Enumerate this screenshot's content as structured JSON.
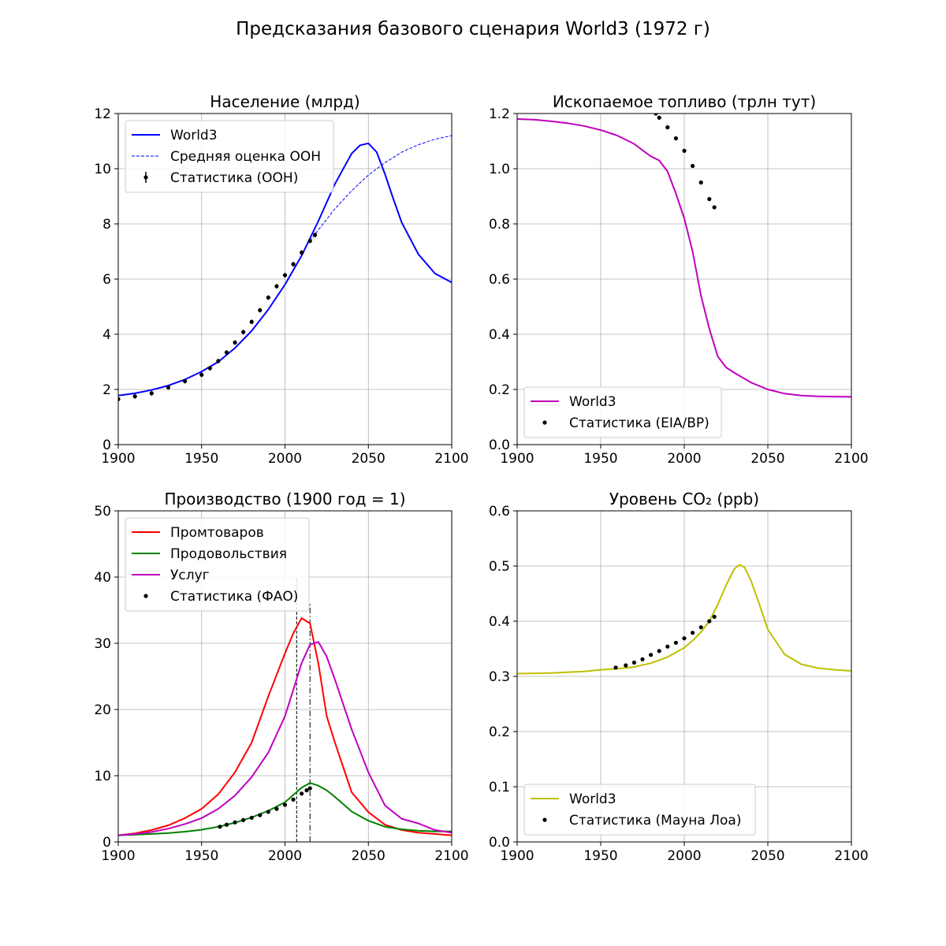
{
  "figure": {
    "title": "Предсказания базового сценария World3 (1972 г)"
  },
  "chart_data": [
    {
      "id": "population",
      "type": "line",
      "title": "Население (млрд)",
      "xlim": [
        1900,
        2100
      ],
      "ylim": [
        0,
        12
      ],
      "xticks": [
        1900,
        1950,
        2000,
        2050,
        2100
      ],
      "yticks": [
        0,
        2,
        4,
        6,
        8,
        10,
        12
      ],
      "grid": true,
      "legend_position": "top-left",
      "series": [
        {
          "name": "World3",
          "style": "line",
          "color": "#0000ff",
          "x": [
            1900,
            1910,
            1920,
            1930,
            1940,
            1950,
            1960,
            1970,
            1980,
            1990,
            2000,
            2010,
            2020,
            2030,
            2040,
            2045,
            2050,
            2055,
            2060,
            2065,
            2070,
            2080,
            2090,
            2100
          ],
          "y": [
            1.78,
            1.86,
            1.98,
            2.14,
            2.36,
            2.65,
            3.0,
            3.5,
            4.12,
            4.9,
            5.8,
            6.85,
            8.1,
            9.45,
            10.55,
            10.85,
            10.92,
            10.6,
            9.8,
            8.9,
            8.05,
            6.9,
            6.2,
            5.88
          ]
        },
        {
          "name": "Средняя оценка ООН",
          "style": "dashed",
          "color": "#0000ff",
          "x": [
            2015,
            2020,
            2030,
            2040,
            2050,
            2060,
            2070,
            2080,
            2090,
            2100
          ],
          "y": [
            7.38,
            7.78,
            8.55,
            9.2,
            9.77,
            10.22,
            10.6,
            10.87,
            11.07,
            11.2
          ]
        },
        {
          "name": "Статистика (ООН)",
          "style": "errorbar",
          "color": "#000000",
          "x": [
            1900,
            1910,
            1920,
            1930,
            1940,
            1950,
            1955,
            1960,
            1965,
            1970,
            1975,
            1980,
            1985,
            1990,
            1995,
            2000,
            2005,
            2010,
            2015,
            2018
          ],
          "y": [
            1.65,
            1.75,
            1.86,
            2.07,
            2.3,
            2.53,
            2.77,
            3.03,
            3.34,
            3.7,
            4.08,
            4.45,
            4.87,
            5.33,
            5.74,
            6.14,
            6.54,
            6.96,
            7.38,
            7.6
          ]
        }
      ]
    },
    {
      "id": "fossil",
      "type": "line",
      "title": "Ископаемое топливо (трлн тут)",
      "xlim": [
        1900,
        2100
      ],
      "ylim": [
        0.0,
        1.2
      ],
      "xticks": [
        1900,
        1950,
        2000,
        2050,
        2100
      ],
      "yticks": [
        0.0,
        0.2,
        0.4,
        0.6,
        0.8,
        1.0,
        1.2
      ],
      "grid": true,
      "legend_position": "bottom-left",
      "series": [
        {
          "name": "World3",
          "style": "line",
          "color": "#bf00bf",
          "x": [
            1900,
            1910,
            1920,
            1930,
            1940,
            1950,
            1960,
            1970,
            1975,
            1980,
            1985,
            1990,
            1995,
            2000,
            2005,
            2010,
            2015,
            2020,
            2025,
            2030,
            2040,
            2050,
            2060,
            2070,
            2080,
            2090,
            2100
          ],
          "y": [
            1.18,
            1.178,
            1.172,
            1.165,
            1.155,
            1.14,
            1.12,
            1.09,
            1.067,
            1.045,
            1.03,
            0.99,
            0.91,
            0.82,
            0.7,
            0.54,
            0.42,
            0.32,
            0.28,
            0.26,
            0.225,
            0.2,
            0.185,
            0.178,
            0.175,
            0.174,
            0.173
          ]
        },
        {
          "name": "Статистика (EIA/BP)",
          "style": "markers",
          "color": "#000000",
          "x": [
            1983,
            1985,
            1990,
            1995,
            2000,
            2005,
            2010,
            2015,
            2018
          ],
          "y": [
            1.2,
            1.185,
            1.15,
            1.11,
            1.065,
            1.01,
            0.95,
            0.89,
            0.86
          ]
        }
      ]
    },
    {
      "id": "production",
      "type": "line",
      "title": "Производство (1900 год = 1)",
      "xlim": [
        1900,
        2100
      ],
      "ylim": [
        0,
        50
      ],
      "xticks": [
        1900,
        1950,
        2000,
        2050,
        2100
      ],
      "yticks": [
        0,
        10,
        20,
        30,
        40,
        50
      ],
      "grid": true,
      "legend_position": "top-left",
      "vlines": [
        {
          "x": 2007,
          "style": "dashed",
          "ymax": 40
        },
        {
          "x": 2015,
          "style": "dashdot",
          "ymax": 36
        }
      ],
      "series": [
        {
          "name": "Промтоваров",
          "style": "line",
          "color": "#ff0000",
          "x": [
            1900,
            1910,
            1920,
            1930,
            1940,
            1950,
            1960,
            1970,
            1980,
            1990,
            2000,
            2005,
            2010,
            2015,
            2020,
            2025,
            2030,
            2040,
            2050,
            2060,
            2070,
            2080,
            2090,
            2100
          ],
          "y": [
            1,
            1.3,
            1.8,
            2.5,
            3.6,
            5,
            7.2,
            10.5,
            15,
            22,
            28.5,
            31.5,
            33.8,
            33,
            27,
            19,
            15,
            7.5,
            4.5,
            2.6,
            1.8,
            1.4,
            1.2,
            1.0
          ]
        },
        {
          "name": "Продовольствия",
          "style": "line",
          "color": "#008000",
          "x": [
            1900,
            1910,
            1920,
            1930,
            1940,
            1950,
            1960,
            1970,
            1980,
            1990,
            2000,
            2005,
            2010,
            2015,
            2020,
            2025,
            2030,
            2040,
            2050,
            2060,
            2070,
            2080,
            2090,
            2100
          ],
          "y": [
            1,
            1.1,
            1.2,
            1.35,
            1.55,
            1.85,
            2.3,
            2.9,
            3.7,
            4.7,
            6,
            7.1,
            8.2,
            8.9,
            8.5,
            7.8,
            6.8,
            4.6,
            3.2,
            2.3,
            1.9,
            1.7,
            1.6,
            1.6
          ]
        },
        {
          "name": "Услуг",
          "style": "line",
          "color": "#bf00bf",
          "x": [
            1900,
            1910,
            1920,
            1930,
            1940,
            1950,
            1960,
            1970,
            1980,
            1990,
            2000,
            2005,
            2010,
            2015,
            2020,
            2025,
            2030,
            2040,
            2050,
            2060,
            2070,
            2080,
            2090,
            2100
          ],
          "y": [
            1,
            1.2,
            1.5,
            2,
            2.7,
            3.6,
            5,
            7,
            9.8,
            13.5,
            19,
            23,
            27,
            29.8,
            30.2,
            28,
            24.5,
            17,
            10.5,
            5.5,
            3.5,
            2.8,
            1.8,
            1.4
          ]
        },
        {
          "name": "Статистика (ФАО)",
          "style": "markers",
          "color": "#000000",
          "x": [
            1961,
            1965,
            1970,
            1975,
            1980,
            1985,
            1990,
            1995,
            2000,
            2005,
            2010,
            2013,
            2015
          ],
          "y": [
            2.3,
            2.6,
            2.95,
            3.3,
            3.65,
            4.05,
            4.55,
            5.0,
            5.6,
            6.4,
            7.3,
            7.8,
            8.1
          ]
        }
      ]
    },
    {
      "id": "co2",
      "type": "line",
      "title": "Уровень CO₂ (ppb)",
      "xlim": [
        1900,
        2100
      ],
      "ylim": [
        0.0,
        0.6
      ],
      "xticks": [
        1900,
        1950,
        2000,
        2050,
        2100
      ],
      "yticks": [
        0.0,
        0.1,
        0.2,
        0.3,
        0.4,
        0.5,
        0.6
      ],
      "grid": true,
      "legend_position": "bottom-left",
      "series": [
        {
          "name": "World3",
          "style": "line",
          "color": "#bfbf00",
          "x": [
            1900,
            1920,
            1940,
            1950,
            1960,
            1970,
            1980,
            1990,
            2000,
            2005,
            2010,
            2015,
            2020,
            2025,
            2030,
            2033,
            2036,
            2040,
            2045,
            2050,
            2060,
            2070,
            2080,
            2090,
            2100
          ],
          "y": [
            0.305,
            0.306,
            0.309,
            0.312,
            0.314,
            0.317,
            0.324,
            0.335,
            0.352,
            0.365,
            0.38,
            0.4,
            0.43,
            0.465,
            0.495,
            0.502,
            0.498,
            0.473,
            0.43,
            0.385,
            0.34,
            0.322,
            0.315,
            0.312,
            0.31
          ]
        },
        {
          "name": "Статистика (Мауна Лоа)",
          "style": "markers",
          "color": "#000000",
          "x": [
            1959,
            1965,
            1970,
            1975,
            1980,
            1985,
            1990,
            1995,
            2000,
            2005,
            2010,
            2015,
            2018
          ],
          "y": [
            0.316,
            0.32,
            0.325,
            0.331,
            0.339,
            0.346,
            0.354,
            0.361,
            0.369,
            0.379,
            0.389,
            0.4,
            0.408
          ]
        }
      ]
    }
  ]
}
